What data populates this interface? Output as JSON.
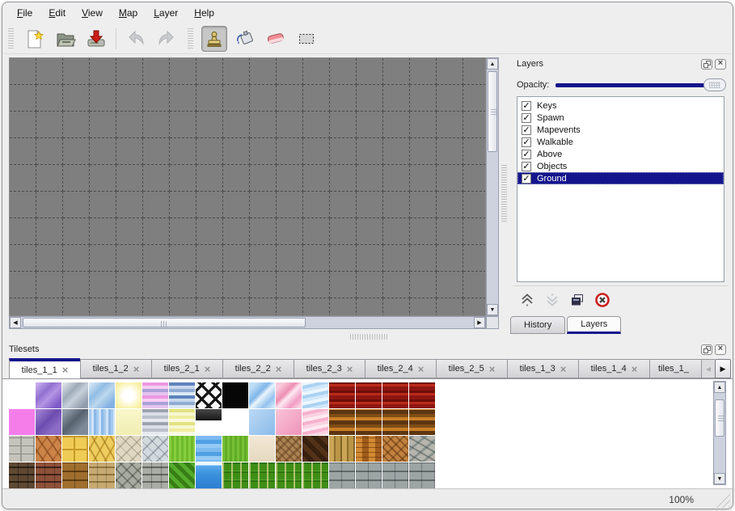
{
  "menu_bar": {
    "items": [
      {
        "label": "File"
      },
      {
        "label": "Edit"
      },
      {
        "label": "View"
      },
      {
        "label": "Map"
      },
      {
        "label": "Layer"
      },
      {
        "label": "Help"
      }
    ]
  },
  "toolbar": {
    "buttons": [
      {
        "name": "new-map-button",
        "icon": "new-document-icon"
      },
      {
        "name": "open-map-button",
        "icon": "open-folder-icon"
      },
      {
        "name": "save-map-button",
        "icon": "save-icon"
      },
      {
        "name": "undo-button",
        "icon": "undo-arrow-icon",
        "disabled": true
      },
      {
        "name": "redo-button",
        "icon": "redo-arrow-icon",
        "disabled": true
      },
      {
        "name": "stamp-tool-button",
        "icon": "stamp-icon",
        "selected": true
      },
      {
        "name": "fill-tool-button",
        "icon": "paint-bucket-icon"
      },
      {
        "name": "eraser-tool-button",
        "icon": "eraser-icon"
      },
      {
        "name": "select-tool-button",
        "icon": "selection-rectangle-icon"
      }
    ]
  },
  "canvas": {
    "background": "#7f7f7f",
    "grid_line_color": "#4c4c4c",
    "cell_size": 33,
    "cols": 18,
    "rows": 10
  },
  "layers_panel": {
    "title": "Layers",
    "opacity_label": "Opacity:",
    "opacity_value_percent": 100,
    "accent_color": "#14148c",
    "layers": [
      {
        "name": "Keys",
        "checked": true,
        "selected": false
      },
      {
        "name": "Spawn",
        "checked": true,
        "selected": false
      },
      {
        "name": "Mapevents",
        "checked": true,
        "selected": false
      },
      {
        "name": "Walkable",
        "checked": true,
        "selected": false
      },
      {
        "name": "Above",
        "checked": true,
        "selected": false
      },
      {
        "name": "Objects",
        "checked": true,
        "selected": false
      },
      {
        "name": "Ground",
        "checked": true,
        "selected": true
      }
    ],
    "buttons": [
      {
        "name": "raise-layer-button",
        "icon": "chevrons-up-icon"
      },
      {
        "name": "lower-layer-button",
        "icon": "chevrons-down-icon",
        "disabled": true
      },
      {
        "name": "duplicate-layer-button",
        "icon": "duplicate-icon"
      },
      {
        "name": "delete-layer-button",
        "icon": "delete-circle-icon"
      }
    ],
    "dock_tabs": [
      {
        "label": "History",
        "active": false
      },
      {
        "label": "Layers",
        "active": true
      }
    ]
  },
  "tilesets_panel": {
    "title": "Tilesets",
    "tabs": [
      {
        "label": "tiles_1_1",
        "active": true,
        "closable": true
      },
      {
        "label": "tiles_1_2",
        "active": false,
        "closable": true
      },
      {
        "label": "tiles_2_1",
        "active": false,
        "closable": true
      },
      {
        "label": "tiles_2_2",
        "active": false,
        "closable": true
      },
      {
        "label": "tiles_2_3",
        "active": false,
        "closable": true
      },
      {
        "label": "tiles_2_4",
        "active": false,
        "closable": true
      },
      {
        "label": "tiles_2_5",
        "active": false,
        "closable": true
      },
      {
        "label": "tiles_1_3",
        "active": false,
        "closable": true
      },
      {
        "label": "tiles_1_4",
        "active": false,
        "closable": true
      },
      {
        "label": "tiles_1_",
        "active": false,
        "closable": false,
        "truncated": true
      }
    ],
    "tile_rows": [
      [
        {
          "n": "empty-white",
          "bg": "#ffffff"
        },
        {
          "n": "purple-glass",
          "bg": "linear-gradient(135deg,#c9aef0 5%,#9070d0 35%,#b494e4 55%,#7e5ac6 85%)"
        },
        {
          "n": "silver-glass",
          "bg": "linear-gradient(135deg,#dde3ea 5%,#9fabb8 35%,#c6d0da 55%,#919dac 85%)"
        },
        {
          "n": "blue-glass",
          "bg": "linear-gradient(135deg,#d3e6f6 5%,#90bce4 35%,#bdd8ee 55%,#82b0e2 85%)"
        },
        {
          "n": "yellow-glow",
          "bg": "radial-gradient(circle at 50% 50%,#ffffff 30%,#faf4b4 70%,#f2ea94 100%)"
        },
        {
          "n": "pink-stripes",
          "bg": "repeating-linear-gradient(180deg,#ec98e2 0 4px,#f7cdf1 4px 8px,#aaa2da 8px 12px,#e4c4ee 12px 16px)"
        },
        {
          "n": "blue-stripes",
          "bg": "repeating-linear-gradient(180deg,#5e82be 0 4px,#c8d8ec 4px 8px,#90acd4 8px 12px,#dce8f4 12px 16px)"
        },
        {
          "n": "lattice",
          "bg": "repeating-linear-gradient(45deg,#141414 0 3px,transparent 3px 12px),repeating-linear-gradient(-45deg,#141414 0 3px,#fafafa 3px 12px)"
        },
        {
          "n": "black",
          "bg": "#060606"
        },
        {
          "n": "lightblue-streak",
          "bg": "linear-gradient(135deg,#bfdef5 15%,#80b6ea 40%,#eaf5fd 52%,#94c2ee 75%,#cfe6f8 95%)"
        },
        {
          "n": "pink-streak",
          "bg": "linear-gradient(135deg,#f9cadb 15%,#ee8eb4 40%,#fdeaf2 52%,#f29cc4 75%,#fad8e6 95%)"
        },
        {
          "n": "blue-ripple",
          "bg": "repeating-linear-gradient(168deg,#ecf6fd 0 4px,#aad2f2 4px 8px,#d2e8fa 8px 12px)"
        },
        {
          "n": "red-curtain",
          "bg": "repeating-linear-gradient(0deg,#8e1612 0 5px,#ba2a1a 5px 8px,#6e0e08 8px 11px)"
        },
        {
          "n": "red-curtain",
          "bg": "repeating-linear-gradient(0deg,#8e1612 0 5px,#ba2a1a 5px 8px,#6e0e08 8px 11px)"
        },
        {
          "n": "red-curtain",
          "bg": "repeating-linear-gradient(0deg,#8e1612 0 5px,#ba2a1a 5px 8px,#6e0e08 8px 11px)"
        },
        {
          "n": "red-curtain",
          "bg": "repeating-linear-gradient(0deg,#8e1612 0 5px,#ba2a1a 5px 8px,#6e0e08 8px 11px)"
        }
      ],
      [
        {
          "n": "magenta",
          "bg": "#f57dea"
        },
        {
          "n": "purple-glass-dark",
          "bg": "linear-gradient(135deg,#a07ed4 10%,#6c4cae 45%,#8c6cc6 75%)"
        },
        {
          "n": "gray-glass-dark",
          "bg": "linear-gradient(135deg,#909ca8 10%,#56626e 45%,#7e8a98 75%)"
        },
        {
          "n": "blue-water-streaks",
          "bg": "repeating-linear-gradient(90deg,#a4cbee 0 3px,#d0e3f6 3px 6px,#8cb8e6 6px 9px)"
        },
        {
          "n": "pale-yellow",
          "bg": "linear-gradient(180deg,#f9f7cc,#f1edb2)"
        },
        {
          "n": "gray-stripes",
          "bg": "repeating-linear-gradient(180deg,#9ca2ae 0 4px,#dadee6 4px 8px,#bcc0cc 8px 12px,#e6eaf0 12px 16px)"
        },
        {
          "n": "yellow-stripes",
          "bg": "repeating-linear-gradient(180deg,#e2e280 0 4px,#f7f7d0 4px 8px,#eeeea0 8px 12px,#fafae0 12px 16px)"
        },
        {
          "n": "dark-plaque",
          "bg": "linear-gradient(180deg,#4a4a4a,#161616)",
          "h": 14
        },
        {
          "n": "empty-white",
          "bg": "#ffffff"
        },
        {
          "n": "lightblue",
          "bg": "linear-gradient(135deg,#bcdaf5,#8abaea)"
        },
        {
          "n": "pink",
          "bg": "linear-gradient(135deg,#f9c2d6,#ee94ba)"
        },
        {
          "n": "pink-ripple",
          "bg": "repeating-linear-gradient(168deg,#fdeaf2 0 4px,#f6b2ce 4px 8px,#fad2e2 8px 12px)"
        },
        {
          "n": "brown-bands",
          "bg": "repeating-linear-gradient(0deg,#5c3610 0 5px,#ca7e26 5px 9px,#7e4e16 9px 13px)"
        },
        {
          "n": "brown-bands",
          "bg": "repeating-linear-gradient(0deg,#5c3610 0 5px,#ca7e26 5px 9px,#7e4e16 9px 13px)"
        },
        {
          "n": "brown-bands",
          "bg": "repeating-linear-gradient(0deg,#5c3610 0 5px,#ca7e26 5px 9px,#7e4e16 9px 13px)"
        },
        {
          "n": "brown-bands",
          "bg": "repeating-linear-gradient(0deg,#5c3610 0 5px,#ca7e26 5px 9px,#7e4e16 9px 13px)"
        }
      ],
      [
        {
          "n": "gray-stone-blocks",
          "bg": "repeating-linear-gradient(0deg,transparent 0 9px,#8a8a82 9px 10px),repeating-linear-gradient(90deg,#c4c4bc 0 14px,#9a9a92 14px 16px)"
        },
        {
          "n": "terracotta-stones",
          "bg": "repeating-linear-gradient(55deg,transparent 0 8px,rgba(120,60,20,0.6) 8px 10px),repeating-linear-gradient(-55deg,#cc8448 0 9px,#b06830 9px 11px)"
        },
        {
          "n": "yellow-tile-floor",
          "bg": "repeating-linear-gradient(0deg,transparent 0 14px,#c69a28 14px 16px),repeating-linear-gradient(90deg,#f0cc56 0 14px,#c69a28 14px 16px)"
        },
        {
          "n": "yellow-stone-path",
          "bg": "repeating-linear-gradient(60deg,transparent 0 8px,rgba(150,110,20,0.55) 8px 10px),repeating-linear-gradient(-60deg,#eecd5e 0 10px,#c9a032 10px 12px)"
        },
        {
          "n": "beige-cobblestone",
          "bg": "repeating-linear-gradient(45deg,transparent 0 8px,rgba(120,112,90,0.5) 8px 9px),repeating-linear-gradient(-45deg,#e0d8c2 0 9px,#bcb49c 9px 11px)"
        },
        {
          "n": "gray-cobblestone",
          "bg": "repeating-linear-gradient(45deg,transparent 0 8px,rgba(90,100,110,0.5) 8px 9px),repeating-linear-gradient(-45deg,#d2dade 0 9px,#a2aab2 9px 11px)"
        },
        {
          "n": "grass-bright",
          "bg": "repeating-linear-gradient(90deg,#86ce3e 0 3px,#6eba2a 3px 6px)"
        },
        {
          "n": "water-sparkle",
          "bg": "repeating-linear-gradient(180deg,#7cbaf0 0 5px,#50a0e4 5px 10px,#94caf4 10px 15px)"
        },
        {
          "n": "grass",
          "bg": "repeating-linear-gradient(90deg,#78c036 0 3px,#60ac26 3px 6px)"
        },
        {
          "n": "sand",
          "bg": "linear-gradient(180deg,#f2e8d6,#e6d8c0)"
        },
        {
          "n": "dirt-pebbles",
          "bg": "repeating-linear-gradient(45deg,transparent 0 4px,rgba(90,60,30,0.5) 4px 6px),repeating-linear-gradient(-45deg,#ac8454 0 5px,#8a6236 5px 8px)"
        },
        {
          "n": "dark-wood-diagonal",
          "bg": "repeating-linear-gradient(45deg,#523218 0 6px,#37200e 6px 12px)"
        },
        {
          "n": "wood-planks-vertical",
          "bg": "repeating-linear-gradient(90deg,#caa656 0 6px,#8e6e2e 6px 8px,#ba9646 8px 14px,#826226 14px 16px)"
        },
        {
          "n": "basket-weave",
          "bg": "repeating-linear-gradient(0deg,transparent 0 5px,rgba(90,40,10,0.55) 5px 6px),repeating-linear-gradient(90deg,#d28a32 0 8px,#a05c1a 8px 16px)"
        },
        {
          "n": "herringbone-wood",
          "bg": "repeating-linear-gradient(-45deg,transparent 0 7px,rgba(70,40,10,0.4) 7px 9px),repeating-linear-gradient(45deg,#c28240 0 5px,#8e5622 5px 7px)"
        },
        {
          "n": "stone-pile",
          "bg": "repeating-linear-gradient(30deg,transparent 0 7px,rgba(70,78,78,0.5) 7px 9px),repeating-linear-gradient(-40deg,#b6b6ae 0 8px,#8a928e 8px 11px)"
        }
      ],
      [
        {
          "n": "dark-brown-brick",
          "bg": "repeating-linear-gradient(90deg,transparent 0 11px,rgba(0,0,0,0.35) 11px 12px),repeating-linear-gradient(0deg,#5e4832 0 7px,#2e2014 7px 9px)"
        },
        {
          "n": "red-brick",
          "bg": "repeating-linear-gradient(90deg,transparent 0 11px,rgba(0,0,0,0.3) 11px 12px),repeating-linear-gradient(0deg,#8e5038 0 7px,#40221a 7px 9px)"
        },
        {
          "n": "brown-block-wall",
          "bg": "repeating-linear-gradient(90deg,transparent 0 15px,rgba(0,0,0,0.3) 15px 16px),repeating-linear-gradient(0deg,#a06e2e 0 9px,#5e3e12 9px 11px)"
        },
        {
          "n": "tan-stone-wall",
          "bg": "repeating-linear-gradient(90deg,transparent 0 10px,rgba(0,0,0,0.22) 10px 11px),repeating-linear-gradient(0deg,#c6aa72 0 7px,#907440 7px 9px)"
        },
        {
          "n": "gray-boulder-wall",
          "bg": "repeating-linear-gradient(45deg,transparent 0 7px,rgba(40,45,40,0.4) 7px 9px),repeating-linear-gradient(-45deg,#a8aca0 0 8px,#7c8074 8px 10px)"
        },
        {
          "n": "gray-brick-wall",
          "bg": "repeating-linear-gradient(90deg,transparent 0 11px,rgba(0,0,0,0.28) 11px 12px),repeating-linear-gradient(0deg,#a8aca4 0 7px,#626660 7px 9px)"
        },
        {
          "n": "hedge",
          "bg": "repeating-linear-gradient(45deg,#54ac2c 0 5px,#387e16 5px 10px)"
        },
        {
          "n": "water-edge",
          "bg": "linear-gradient(180deg,#eef8fe 0%,#eef8fe 10%,#58aaea 12%,#3a92dc 45%,#2c7ed0 100%)"
        },
        {
          "n": "grass-flower-rows",
          "bg": "repeating-linear-gradient(90deg,rgba(238,222,164,0.65) 0 2px,transparent 2px 11px),repeating-linear-gradient(0deg,#3e8e16 0 8px,#2e7410 8px 10px,#56a626 10px 11px)"
        },
        {
          "n": "grass-flower-rows",
          "bg": "repeating-linear-gradient(90deg,rgba(238,222,164,0.65) 0 2px,transparent 2px 11px),repeating-linear-gradient(0deg,#3e8e16 0 8px,#2e7410 8px 10px,#56a626 10px 11px)"
        },
        {
          "n": "grass-flower-rows",
          "bg": "repeating-linear-gradient(90deg,rgba(238,222,164,0.65) 0 2px,transparent 2px 11px),repeating-linear-gradient(0deg,#3e8e16 0 8px,#2e7410 8px 10px,#56a626 10px 11px)"
        },
        {
          "n": "grass-flower-rows",
          "bg": "repeating-linear-gradient(90deg,rgba(238,222,164,0.65) 0 2px,transparent 2px 11px),repeating-linear-gradient(0deg,#3e8e16 0 8px,#2e7410 8px 10px,#56a626 10px 11px)"
        },
        {
          "n": "gray-planks",
          "bg": "repeating-linear-gradient(90deg,transparent 0 15px,rgba(0,0,0,0.25) 15px 16px),repeating-linear-gradient(0deg,#9ca4a4 0 9px,#606868 9px 11px)"
        },
        {
          "n": "gray-planks",
          "bg": "repeating-linear-gradient(90deg,transparent 0 15px,rgba(0,0,0,0.25) 15px 16px),repeating-linear-gradient(0deg,#9ca4a4 0 9px,#606868 9px 11px)"
        },
        {
          "n": "gray-planks",
          "bg": "repeating-linear-gradient(90deg,transparent 0 15px,rgba(0,0,0,0.25) 15px 16px),repeating-linear-gradient(0deg,#9ca4a4 0 9px,#606868 9px 11px)"
        },
        {
          "n": "gray-planks",
          "bg": "repeating-linear-gradient(90deg,transparent 0 15px,rgba(0,0,0,0.25) 15px 16px),repeating-linear-gradient(0deg,#9ca4a4 0 9px,#606868 9px 11px)"
        }
      ]
    ]
  },
  "status_bar": {
    "zoom_text": "100%"
  },
  "icons": {
    "check": "✓",
    "close": "×",
    "left": "◀",
    "right": "▶",
    "up": "▲",
    "down": "▼"
  }
}
